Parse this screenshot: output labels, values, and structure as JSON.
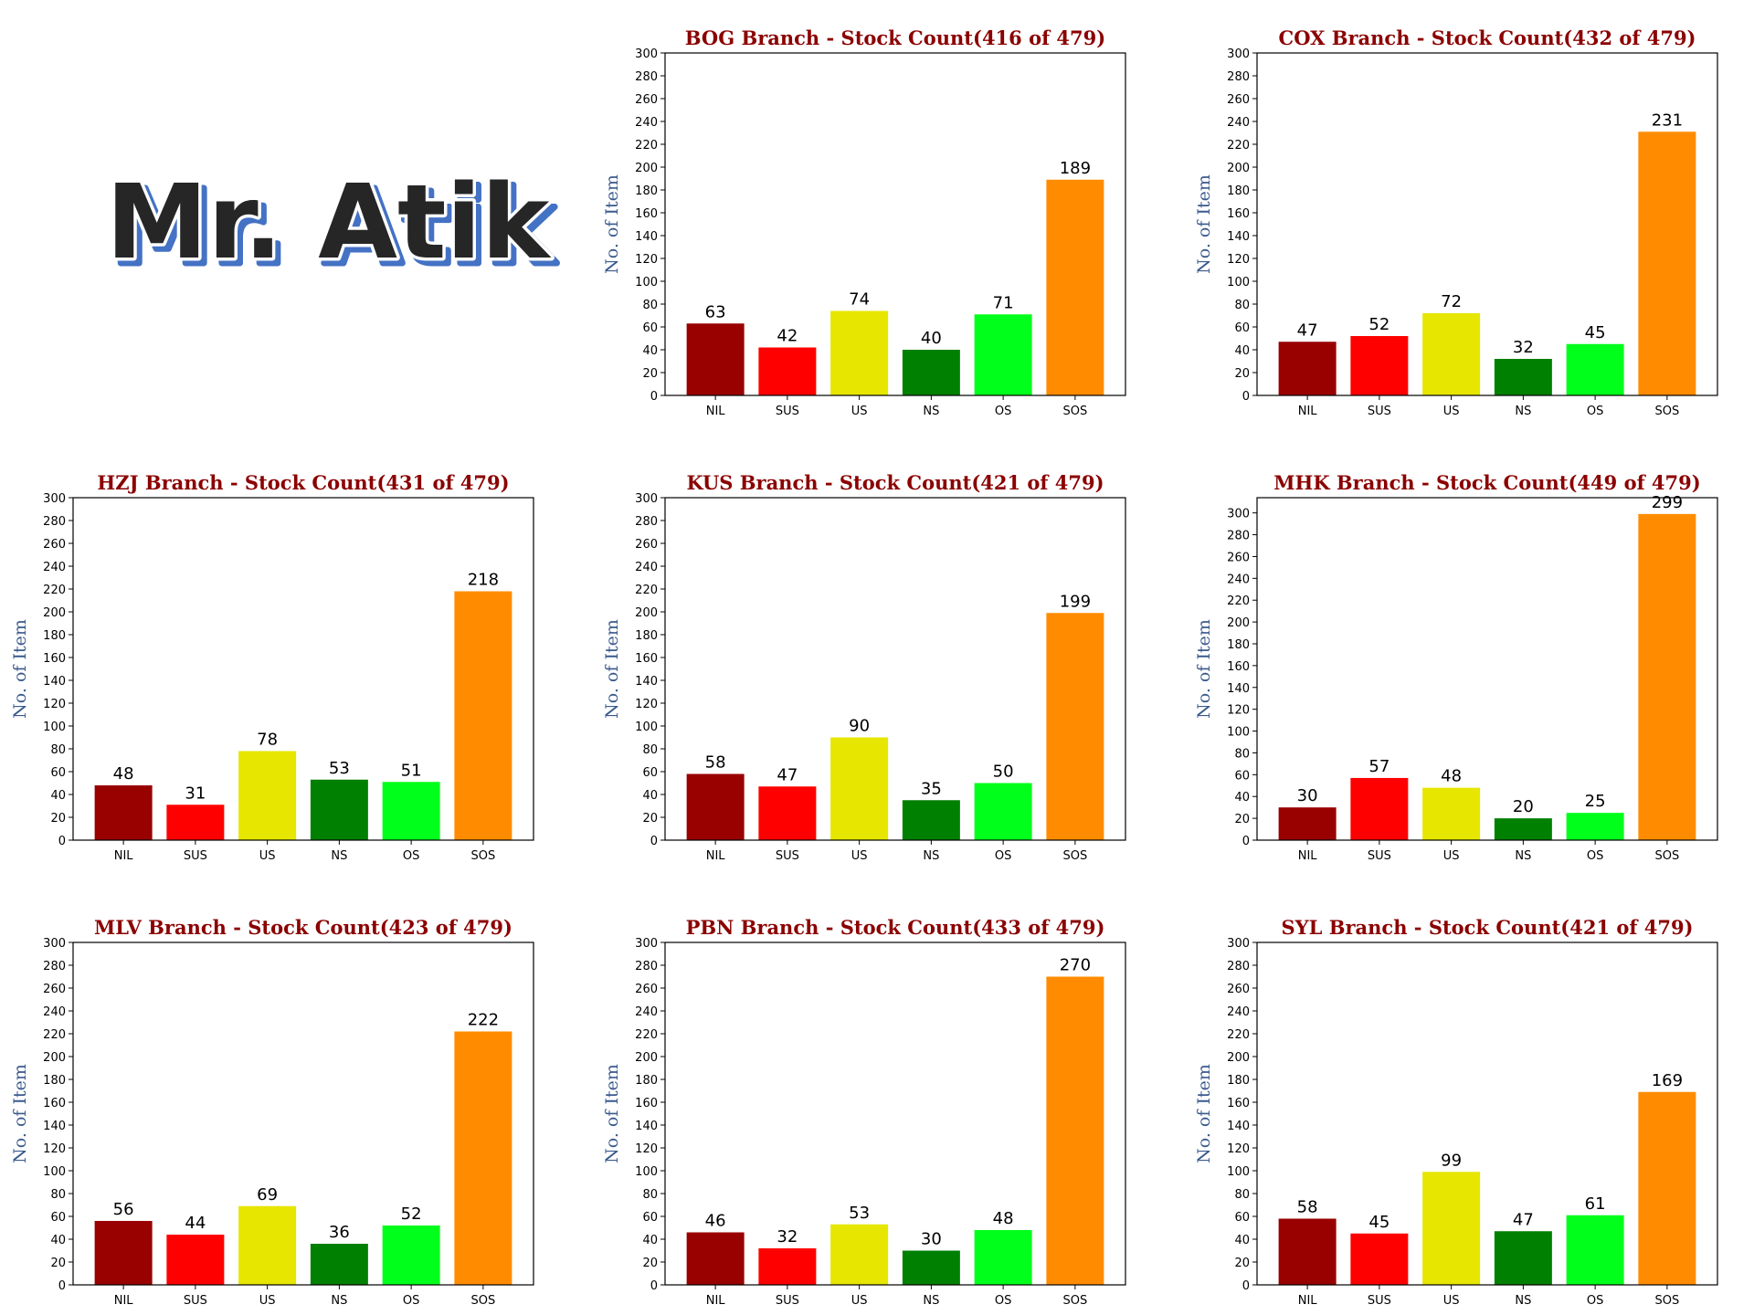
{
  "logo": {
    "text": "Mr. Atik",
    "fill": "#262626",
    "outline": "#ffffff",
    "shadow": "#4472c4"
  },
  "chart_data": [
    {
      "type": "bar",
      "title": "BOG Branch - Stock Count(416 of 479)",
      "ylabel": "No. of Item",
      "categories": [
        "NIL",
        "SUS",
        "US",
        "NS",
        "OS",
        "SOS"
      ],
      "values": [
        63,
        42,
        74,
        40,
        71,
        189
      ],
      "ylim": [
        0,
        300
      ],
      "yticks": [
        0,
        20,
        40,
        60,
        80,
        100,
        120,
        140,
        160,
        180,
        200,
        220,
        240,
        260,
        280,
        300
      ]
    },
    {
      "type": "bar",
      "title": "COX Branch - Stock Count(432 of 479)",
      "ylabel": "No. of Item",
      "categories": [
        "NIL",
        "SUS",
        "US",
        "NS",
        "OS",
        "SOS"
      ],
      "values": [
        47,
        52,
        72,
        32,
        45,
        231
      ],
      "ylim": [
        0,
        300
      ],
      "yticks": [
        0,
        20,
        40,
        60,
        80,
        100,
        120,
        140,
        160,
        180,
        200,
        220,
        240,
        260,
        280,
        300
      ]
    },
    {
      "type": "bar",
      "title": "HZJ Branch - Stock Count(431 of 479)",
      "ylabel": "No. of Item",
      "categories": [
        "NIL",
        "SUS",
        "US",
        "NS",
        "OS",
        "SOS"
      ],
      "values": [
        48,
        31,
        78,
        53,
        51,
        218
      ],
      "ylim": [
        0,
        300
      ],
      "yticks": [
        0,
        20,
        40,
        60,
        80,
        100,
        120,
        140,
        160,
        180,
        200,
        220,
        240,
        260,
        280,
        300
      ]
    },
    {
      "type": "bar",
      "title": "KUS Branch - Stock Count(421 of 479)",
      "ylabel": "No. of Item",
      "categories": [
        "NIL",
        "SUS",
        "US",
        "NS",
        "OS",
        "SOS"
      ],
      "values": [
        58,
        47,
        90,
        35,
        50,
        199
      ],
      "ylim": [
        0,
        300
      ],
      "yticks": [
        0,
        20,
        40,
        60,
        80,
        100,
        120,
        140,
        160,
        180,
        200,
        220,
        240,
        260,
        280,
        300
      ]
    },
    {
      "type": "bar",
      "title": "MHK Branch - Stock Count(449 of 479)",
      "ylabel": "No. of Item",
      "categories": [
        "NIL",
        "SUS",
        "US",
        "NS",
        "OS",
        "SOS"
      ],
      "values": [
        30,
        57,
        48,
        20,
        25,
        299
      ],
      "ylim": [
        0,
        313.95
      ],
      "yticks": [
        0,
        20,
        40,
        60,
        80,
        100,
        120,
        140,
        160,
        180,
        200,
        220,
        240,
        260,
        280,
        300
      ]
    },
    {
      "type": "bar",
      "title": "MLV Branch - Stock Count(423 of 479)",
      "ylabel": "No. of Item",
      "categories": [
        "NIL",
        "SUS",
        "US",
        "NS",
        "OS",
        "SOS"
      ],
      "values": [
        56,
        44,
        69,
        36,
        52,
        222
      ],
      "ylim": [
        0,
        300
      ],
      "yticks": [
        0,
        20,
        40,
        60,
        80,
        100,
        120,
        140,
        160,
        180,
        200,
        220,
        240,
        260,
        280,
        300
      ]
    },
    {
      "type": "bar",
      "title": "PBN Branch - Stock Count(433 of 479)",
      "ylabel": "No. of Item",
      "categories": [
        "NIL",
        "SUS",
        "US",
        "NS",
        "OS",
        "SOS"
      ],
      "values": [
        46,
        32,
        53,
        30,
        48,
        270
      ],
      "ylim": [
        0,
        300
      ],
      "yticks": [
        0,
        20,
        40,
        60,
        80,
        100,
        120,
        140,
        160,
        180,
        200,
        220,
        240,
        260,
        280,
        300
      ]
    },
    {
      "type": "bar",
      "title": "SYL Branch - Stock Count(421 of 479)",
      "ylabel": "No. of Item",
      "categories": [
        "NIL",
        "SUS",
        "US",
        "NS",
        "OS",
        "SOS"
      ],
      "values": [
        58,
        45,
        99,
        47,
        61,
        169
      ],
      "ylim": [
        0,
        300
      ],
      "yticks": [
        0,
        20,
        40,
        60,
        80,
        100,
        120,
        140,
        160,
        180,
        200,
        220,
        240,
        260,
        280,
        300
      ]
    }
  ],
  "style": {
    "bar_colors": [
      "#990000",
      "#ff0000",
      "#e6e600",
      "#008000",
      "#00ff1a",
      "#ff8c00"
    ],
    "title_color": "#8b0000",
    "ylabel_color": "#3a5a8c",
    "axis_color": "#000000",
    "label_color": "#000000"
  }
}
